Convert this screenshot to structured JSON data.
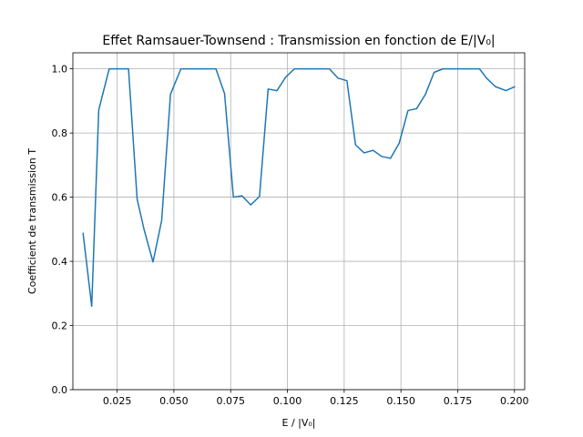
{
  "chart_data": {
    "type": "line",
    "title": "Effet Ramsauer-Townsend : Transmission en fonction de E/|V₀|",
    "xlabel": "E / |V₀|",
    "ylabel": "Coefficient de transmission T",
    "xlim": [
      0.0055,
      0.2045
    ],
    "ylim": [
      0.0,
      1.05
    ],
    "grid": true,
    "xticks": [
      0.025,
      0.05,
      0.075,
      0.1,
      0.125,
      0.15,
      0.175,
      0.2
    ],
    "xtick_labels": [
      "0.025",
      "0.050",
      "0.075",
      "0.100",
      "0.125",
      "0.150",
      "0.175",
      "0.200"
    ],
    "yticks": [
      0.0,
      0.2,
      0.4,
      0.6,
      0.8,
      1.0
    ],
    "ytick_labels": [
      "0.0",
      "0.2",
      "0.4",
      "0.6",
      "0.8",
      "1.0"
    ],
    "series": [
      {
        "name": "T",
        "color": "#1f77b4",
        "x": [
          0.01,
          0.0138,
          0.0169,
          0.0215,
          0.03,
          0.0338,
          0.0369,
          0.0408,
          0.0446,
          0.0485,
          0.0531,
          0.0685,
          0.0723,
          0.0762,
          0.08,
          0.0838,
          0.0877,
          0.0915,
          0.0954,
          0.0992,
          0.1031,
          0.1185,
          0.1223,
          0.1262,
          0.13,
          0.1338,
          0.1377,
          0.1415,
          0.1454,
          0.1492,
          0.1531,
          0.1569,
          0.1608,
          0.1646,
          0.1685,
          0.1846,
          0.1877,
          0.1915,
          0.1962,
          0.2
        ],
        "y": [
          0.487,
          0.26,
          0.872,
          1.0,
          1.0,
          0.594,
          0.498,
          0.398,
          0.527,
          0.921,
          1.0,
          1.0,
          0.923,
          0.6,
          0.604,
          0.576,
          0.602,
          0.937,
          0.932,
          0.974,
          1.0,
          1.0,
          0.971,
          0.963,
          0.763,
          0.738,
          0.746,
          0.727,
          0.721,
          0.768,
          0.87,
          0.876,
          0.921,
          0.989,
          1.0,
          1.0,
          0.971,
          0.945,
          0.932,
          0.944
        ]
      }
    ]
  }
}
